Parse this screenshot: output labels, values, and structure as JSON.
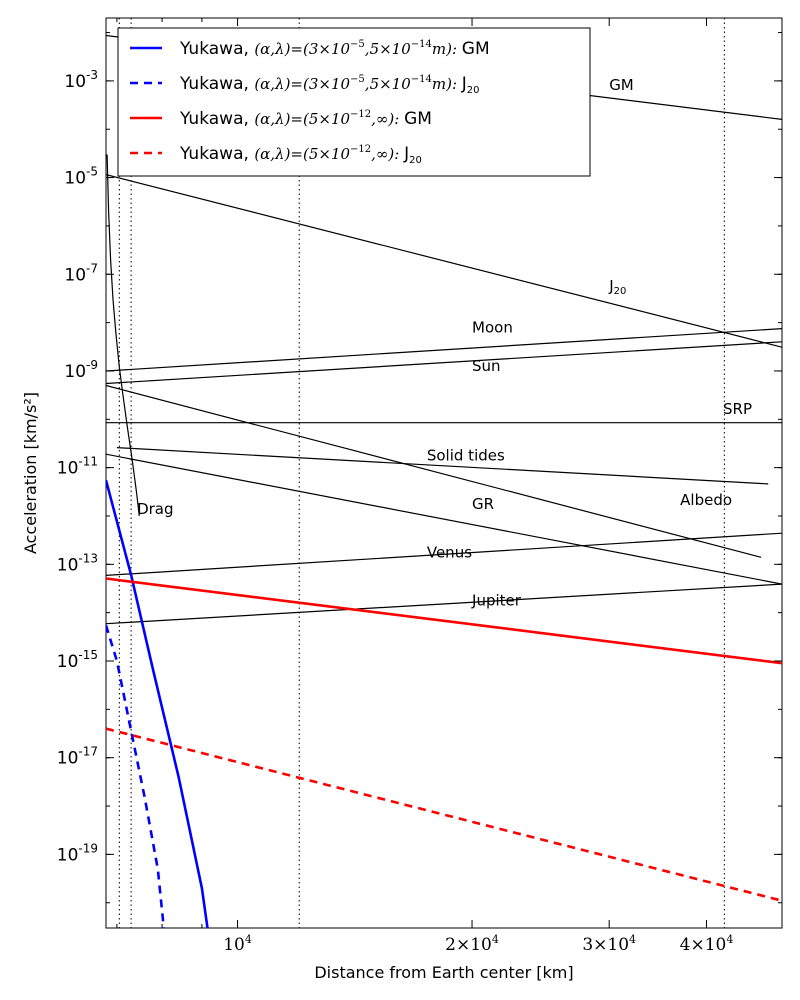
{
  "chart_data": {
    "type": "line",
    "xlabel": "Distance from Earth center [km]",
    "ylabel": "Acceleration [km/s²]",
    "x_scale": "log",
    "y_scale": "log",
    "xlim": [
      6778,
      50000
    ],
    "ylim": [
      3e-21,
      0.02
    ],
    "x_ticks": [
      {
        "value": 10000,
        "base": "10",
        "exp": "4"
      },
      {
        "value": 20000,
        "base": "2×10",
        "exp": "4"
      },
      {
        "value": 30000,
        "base": "3×10",
        "exp": "4"
      },
      {
        "value": 40000,
        "base": "4×10",
        "exp": "4"
      }
    ],
    "y_ticks": [
      {
        "value": 0.001,
        "base": "10",
        "exp": "-3"
      },
      {
        "value": 1e-05,
        "base": "10",
        "exp": "-5"
      },
      {
        "value": 1e-07,
        "base": "10",
        "exp": "-7"
      },
      {
        "value": 1e-09,
        "base": "10",
        "exp": "-9"
      },
      {
        "value": 1e-11,
        "base": "10",
        "exp": "-11"
      },
      {
        "value": 1e-13,
        "base": "10",
        "exp": "-13"
      },
      {
        "value": 1e-15,
        "base": "10",
        "exp": "-15"
      },
      {
        "value": 1e-17,
        "base": "10",
        "exp": "-17"
      },
      {
        "value": 1e-19,
        "base": "10",
        "exp": "-19"
      }
    ],
    "vlines_x": [
      7050,
      7300,
      12000,
      42164
    ],
    "annotations": [
      {
        "text": "GM",
        "x": 30000,
        "y": 0.00065
      },
      {
        "text": "J",
        "sub": "20",
        "x": 30000,
        "y": 4.5e-08
      },
      {
        "text": "Moon",
        "x": 20000,
        "y": 6.2e-09
      },
      {
        "text": "Sun",
        "x": 20000,
        "y": 1e-09
      },
      {
        "text": "SRP",
        "x": 42000,
        "y": 1.3e-10
      },
      {
        "text": "Solid tides",
        "x": 17500,
        "y": 1.4e-11
      },
      {
        "text": "GR",
        "x": 20000,
        "y": 1.4e-12
      },
      {
        "text": "Albedo",
        "x": 37000,
        "y": 1.7e-12
      },
      {
        "text": "Venus",
        "x": 17500,
        "y": 1.4e-13
      },
      {
        "text": "Drag",
        "x": 7430,
        "y": 1.1e-12
      },
      {
        "text": "Jupiter",
        "x": 20000,
        "y": 1.4e-14
      }
    ],
    "series": [
      {
        "name": "GM",
        "color": "#000000",
        "width": 1.2,
        "dash": "solid",
        "points": [
          [
            6778,
            0.0087
          ],
          [
            50000,
            0.00016
          ]
        ]
      },
      {
        "name": "J20",
        "color": "#000000",
        "width": 1.2,
        "dash": "solid",
        "points": [
          [
            6778,
            1.15e-05
          ],
          [
            50000,
            3.1e-09
          ]
        ]
      },
      {
        "name": "Moon",
        "color": "#000000",
        "width": 1.2,
        "dash": "solid",
        "points": [
          [
            6778,
            1e-09
          ],
          [
            50000,
            7.5e-09
          ]
        ]
      },
      {
        "name": "Sun",
        "color": "#000000",
        "width": 1.2,
        "dash": "solid",
        "points": [
          [
            6778,
            5.5e-10
          ],
          [
            50000,
            4e-09
          ]
        ]
      },
      {
        "name": "SRP",
        "color": "#000000",
        "width": 1.2,
        "dash": "solid",
        "points": [
          [
            6778,
            8.5e-11
          ],
          [
            50000,
            8.5e-11
          ]
        ]
      },
      {
        "name": "Solid tides",
        "color": "#000000",
        "width": 1.2,
        "dash": "solid",
        "points": [
          [
            7000,
            2.6e-11
          ],
          [
            48000,
            4.6e-12
          ]
        ]
      },
      {
        "name": "GR",
        "color": "#000000",
        "width": 1.2,
        "dash": "solid",
        "points": [
          [
            6778,
            5e-10
          ],
          [
            47000,
            1.4e-13
          ]
        ]
      },
      {
        "name": "Albedo",
        "color": "#000000",
        "width": 1.2,
        "dash": "solid",
        "points": [
          [
            6778,
            1.9e-11
          ],
          [
            50000,
            3.9e-14
          ]
        ]
      },
      {
        "name": "Venus",
        "color": "#000000",
        "width": 1.2,
        "dash": "solid",
        "points": [
          [
            6778,
            5.9e-14
          ],
          [
            50000,
            4.4e-13
          ]
        ]
      },
      {
        "name": "Jupiter",
        "color": "#000000",
        "width": 1.2,
        "dash": "solid",
        "points": [
          [
            6778,
            5.9e-15
          ],
          [
            50000,
            3.9e-14
          ]
        ]
      },
      {
        "name": "Drag",
        "color": "#000000",
        "width": 1.2,
        "dash": "solid",
        "points": [
          [
            6800,
            3e-05
          ],
          [
            6830,
            2e-06
          ],
          [
            6870,
            2e-07
          ],
          [
            6920,
            3e-08
          ],
          [
            6980,
            6e-09
          ],
          [
            7050,
            1.2e-09
          ],
          [
            7130,
            3e-10
          ],
          [
            7230,
            6e-11
          ],
          [
            7330,
            1.3e-11
          ],
          [
            7420,
            3e-12
          ],
          [
            7480,
            1e-12
          ]
        ]
      },
      {
        "name": "Yukawa GM (3e-5, 5e-14m)",
        "color": "#0000ff",
        "width": 2.6,
        "dash": "solid",
        "points": [
          [
            6778,
            5.5e-12
          ],
          [
            7300,
            6e-14
          ],
          [
            7800,
            6e-16
          ],
          [
            8400,
            4e-18
          ],
          [
            9000,
            2e-20
          ],
          [
            9150,
            3e-21
          ]
        ]
      },
      {
        "name": "Yukawa J20 (3e-5, 5e-14m)",
        "color": "#0000ff",
        "width": 2.6,
        "dash": "dashed",
        "points": [
          [
            6778,
            5.5e-15
          ],
          [
            7000,
            1e-15
          ],
          [
            7300,
            3.6e-17
          ],
          [
            7600,
            1.5e-18
          ],
          [
            7900,
            5e-20
          ],
          [
            8040,
            3e-21
          ]
        ]
      },
      {
        "name": "Yukawa GM (5e-12, inf)",
        "color": "#ff0000",
        "width": 2.6,
        "dash": "solid",
        "points": [
          [
            6778,
            5.1e-14
          ],
          [
            50000,
            9e-16
          ]
        ]
      },
      {
        "name": "Yukawa J20 (5e-12, inf)",
        "color": "#ff0000",
        "width": 2.6,
        "dash": "dashed",
        "points": [
          [
            6778,
            4e-17
          ],
          [
            50000,
            1.1e-20
          ]
        ]
      }
    ],
    "legend": {
      "placement": "top-left",
      "entries": [
        {
          "prefix": "Yukawa, ",
          "math": "(α,λ)=(3×10",
          "e1": "−5",
          "mid": ",5×10",
          "e2": "−14",
          "tail": "m): ",
          "suffix": "GM",
          "sub": "",
          "color": "#0000ff",
          "dash": "solid"
        },
        {
          "prefix": "Yukawa, ",
          "math": "(α,λ)=(3×10",
          "e1": "−5",
          "mid": ",5×10",
          "e2": "−14",
          "tail": "m): ",
          "suffix": "J",
          "sub": "20",
          "color": "#0000ff",
          "dash": "dashed"
        },
        {
          "prefix": "Yukawa, ",
          "math": "(α,λ)=(5×10",
          "e1": "−12",
          "mid": ",∞",
          "e2": "",
          "tail": "): ",
          "suffix": "GM",
          "sub": "",
          "color": "#ff0000",
          "dash": "solid"
        },
        {
          "prefix": "Yukawa, ",
          "math": "(α,λ)=(5×10",
          "e1": "−12",
          "mid": ",∞",
          "e2": "",
          "tail": "): ",
          "suffix": "J",
          "sub": "20",
          "color": "#ff0000",
          "dash": "dashed"
        }
      ]
    }
  }
}
